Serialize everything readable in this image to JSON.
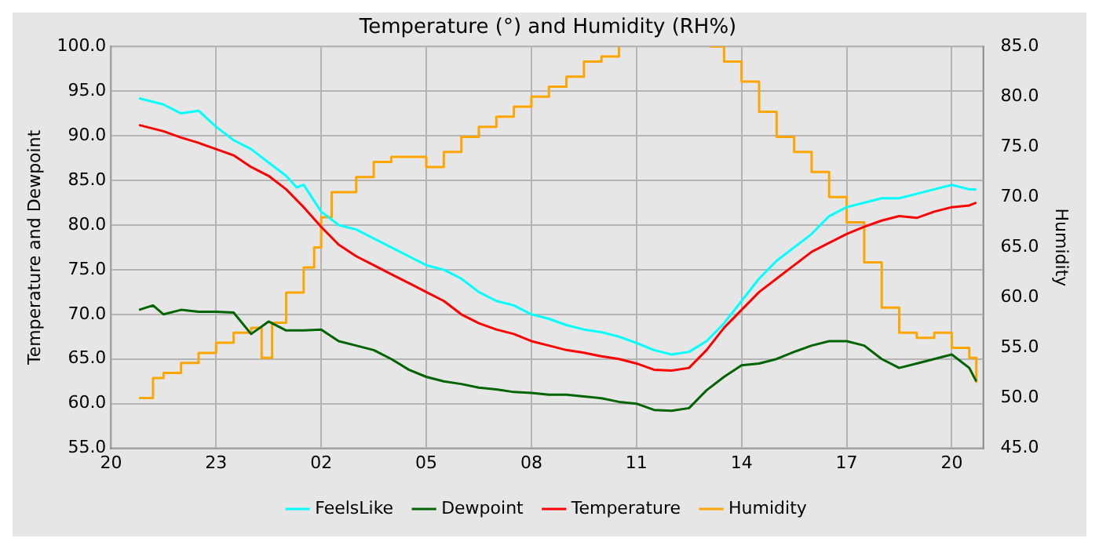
{
  "chart_data": {
    "type": "line",
    "title": "Temperature (°) and Humidity (RH%)",
    "ylabel": "Temperature and Dewpoint",
    "y2label": "Humidity",
    "xlim": [
      "--01-01T20:00",
      "--01-02T20:54"
    ],
    "xticks": [
      {
        "value": "--01-01T20:00",
        "label": "20"
      },
      {
        "value": "--01-01T23:00",
        "label": "23"
      },
      {
        "value": "--01-02T02:00",
        "label": "02"
      },
      {
        "value": "--01-02T05:00",
        "label": "05"
      },
      {
        "value": "--01-02T08:00",
        "label": "08"
      },
      {
        "value": "--01-02T11:00",
        "label": "11"
      },
      {
        "value": "--01-02T14:00",
        "label": "14"
      },
      {
        "value": "--01-02T17:00",
        "label": "17"
      },
      {
        "value": "--01-02T20:00",
        "label": "20"
      }
    ],
    "ylim": [
      55,
      100
    ],
    "yticks": [
      {
        "value": 55,
        "label": "55.0"
      },
      {
        "value": 60,
        "label": "60.0"
      },
      {
        "value": 65,
        "label": "65.0"
      },
      {
        "value": 70,
        "label": "70.0"
      },
      {
        "value": 75,
        "label": "75.0"
      },
      {
        "value": 80,
        "label": "80.0"
      },
      {
        "value": 85,
        "label": "85.0"
      },
      {
        "value": 90,
        "label": "90.0"
      },
      {
        "value": 95,
        "label": "95.0"
      },
      {
        "value": 100,
        "label": "100.0"
      }
    ],
    "y2lim": [
      45,
      85
    ],
    "y2ticks": [
      {
        "value": 45,
        "label": "45.0"
      },
      {
        "value": 50,
        "label": "50.0"
      },
      {
        "value": 55,
        "label": "55.0"
      },
      {
        "value": 60,
        "label": "60.0"
      },
      {
        "value": 65,
        "label": "65.0"
      },
      {
        "value": 70,
        "label": "70.0"
      },
      {
        "value": 75,
        "label": "75.0"
      },
      {
        "value": 80,
        "label": "80.0"
      },
      {
        "value": 85,
        "label": "85.0"
      }
    ],
    "grid": true,
    "legend": "bottom",
    "line_style": "solid",
    "series": [
      {
        "name": "FeelsLike",
        "color": "#00ffff",
        "x": [
          "--01-01T20:48",
          "--01-01T21:30",
          "--01-01T22:00",
          "--01-01T22:30",
          "--01-01T23:00",
          "--01-01T23:30",
          "--01-02T00:00",
          "--01-02T00:30",
          "--01-02T01:00",
          "--01-02T01:18",
          "--01-02T01:30",
          "--01-02T02:00",
          "--01-02T02:30",
          "--01-02T03:00",
          "--01-02T03:30",
          "--01-02T04:00",
          "--01-02T04:30",
          "--01-02T05:00",
          "--01-02T05:30",
          "--01-02T06:00",
          "--01-02T06:30",
          "--01-02T07:00",
          "--01-02T07:30",
          "--01-02T08:00",
          "--01-02T08:30",
          "--01-02T09:00",
          "--01-02T09:30",
          "--01-02T10:00",
          "--01-02T10:30",
          "--01-02T11:00",
          "--01-02T11:30",
          "--01-02T12:00",
          "--01-02T12:30",
          "--01-02T13:00",
          "--01-02T13:30",
          "--01-02T14:00",
          "--01-02T14:30",
          "--01-02T15:00",
          "--01-02T15:30",
          "--01-02T16:00",
          "--01-02T16:30",
          "--01-02T17:00",
          "--01-02T17:30",
          "--01-02T18:00",
          "--01-02T18:30",
          "--01-02T19:00",
          "--01-02T19:30",
          "--01-02T20:00",
          "--01-02T20:30",
          "--01-02T20:42"
        ],
        "values": [
          94.2,
          93.5,
          92.5,
          92.8,
          91,
          89.5,
          88.5,
          87,
          85.5,
          84.2,
          84.5,
          81.5,
          80,
          79.5,
          78.5,
          77.5,
          76.5,
          75.5,
          75,
          74,
          72.5,
          71.5,
          71,
          70,
          69.5,
          68.8,
          68.3,
          68,
          67.5,
          66.8,
          66,
          65.5,
          65.8,
          67,
          69,
          71.5,
          74,
          76,
          77.5,
          79,
          81,
          82,
          82.5,
          83,
          83,
          83.5,
          84,
          84.5,
          84,
          84
        ]
      },
      {
        "name": "Dewpoint",
        "color": "#006400",
        "x": [
          "--01-01T20:48",
          "--01-01T21:12",
          "--01-01T21:30",
          "--01-01T22:00",
          "--01-01T22:30",
          "--01-01T23:00",
          "--01-01T23:30",
          "--01-02T00:00",
          "--01-02T00:30",
          "--01-02T01:00",
          "--01-02T01:30",
          "--01-02T02:00",
          "--01-02T02:30",
          "--01-02T03:00",
          "--01-02T03:30",
          "--01-02T04:00",
          "--01-02T04:30",
          "--01-02T05:00",
          "--01-02T05:30",
          "--01-02T06:00",
          "--01-02T06:30",
          "--01-02T07:00",
          "--01-02T07:30",
          "--01-02T08:00",
          "--01-02T08:30",
          "--01-02T09:00",
          "--01-02T09:30",
          "--01-02T10:00",
          "--01-02T10:30",
          "--01-02T11:00",
          "--01-02T11:30",
          "--01-02T12:00",
          "--01-02T12:30",
          "--01-02T13:00",
          "--01-02T13:30",
          "--01-02T14:00",
          "--01-02T14:30",
          "--01-02T15:00",
          "--01-02T15:30",
          "--01-02T16:00",
          "--01-02T16:30",
          "--01-02T17:00",
          "--01-02T17:30",
          "--01-02T18:00",
          "--01-02T18:30",
          "--01-02T19:00",
          "--01-02T19:30",
          "--01-02T20:00",
          "--01-02T20:30",
          "--01-02T20:42"
        ],
        "values": [
          70.5,
          71,
          70,
          70.5,
          70.3,
          70.3,
          70.2,
          67.8,
          69.2,
          68.2,
          68.2,
          68.3,
          67,
          66.5,
          66,
          65,
          63.8,
          63,
          62.5,
          62.2,
          61.8,
          61.6,
          61.3,
          61.2,
          61,
          61,
          60.8,
          60.6,
          60.2,
          60,
          59.3,
          59.2,
          59.5,
          61.5,
          63,
          64.3,
          64.5,
          65,
          65.8,
          66.5,
          67,
          67,
          66.5,
          65,
          64,
          64.5,
          65,
          65.5,
          64,
          62.5
        ]
      },
      {
        "name": "Temperature",
        "color": "#ff0000",
        "x": [
          "--01-01T20:48",
          "--01-01T21:30",
          "--01-01T22:00",
          "--01-01T22:30",
          "--01-01T23:00",
          "--01-01T23:30",
          "--01-02T00:00",
          "--01-02T00:30",
          "--01-02T01:00",
          "--01-02T01:30",
          "--01-02T02:00",
          "--01-02T02:30",
          "--01-02T03:00",
          "--01-02T03:30",
          "--01-02T04:00",
          "--01-02T04:30",
          "--01-02T05:00",
          "--01-02T05:30",
          "--01-02T06:00",
          "--01-02T06:30",
          "--01-02T07:00",
          "--01-02T07:30",
          "--01-02T08:00",
          "--01-02T08:30",
          "--01-02T09:00",
          "--01-02T09:30",
          "--01-02T10:00",
          "--01-02T10:30",
          "--01-02T11:00",
          "--01-02T11:30",
          "--01-02T12:00",
          "--01-02T12:30",
          "--01-02T13:00",
          "--01-02T13:30",
          "--01-02T14:00",
          "--01-02T14:30",
          "--01-02T15:00",
          "--01-02T15:30",
          "--01-02T16:00",
          "--01-02T16:30",
          "--01-02T17:00",
          "--01-02T17:30",
          "--01-02T18:00",
          "--01-02T18:30",
          "--01-02T19:00",
          "--01-02T19:30",
          "--01-02T20:00",
          "--01-02T20:30",
          "--01-02T20:42"
        ],
        "values": [
          91.2,
          90.5,
          89.8,
          89.2,
          88.5,
          87.8,
          86.5,
          85.5,
          84,
          82,
          79.8,
          77.8,
          76.5,
          75.5,
          74.5,
          73.5,
          72.5,
          71.5,
          70,
          69,
          68.3,
          67.8,
          67,
          66.5,
          66,
          65.7,
          65.3,
          65,
          64.5,
          63.8,
          63.7,
          64,
          66,
          68.5,
          70.5,
          72.5,
          74,
          75.5,
          77,
          78,
          79,
          79.8,
          80.5,
          81,
          80.8,
          81.5,
          82,
          82.2,
          82.5
        ]
      },
      {
        "name": "Humidity",
        "color": "#ffa500",
        "type": "step",
        "axis": "y2",
        "x": [
          "--01-01T20:48",
          "--01-01T21:12",
          "--01-01T21:30",
          "--01-01T22:00",
          "--01-01T22:30",
          "--01-01T23:00",
          "--01-01T23:30",
          "--01-02T00:00",
          "--01-02T00:18",
          "--01-02T00:36",
          "--01-02T01:00",
          "--01-02T01:30",
          "--01-02T01:48",
          "--01-02T02:00",
          "--01-02T02:18",
          "--01-02T03:00",
          "--01-02T03:30",
          "--01-02T04:00",
          "--01-02T04:30",
          "--01-02T05:00",
          "--01-02T05:30",
          "--01-02T06:00",
          "--01-02T06:30",
          "--01-02T07:00",
          "--01-02T07:30",
          "--01-02T08:00",
          "--01-02T08:30",
          "--01-02T09:00",
          "--01-02T09:30",
          "--01-02T10:00",
          "--01-02T10:30",
          "--01-02T11:00",
          "--01-02T13:06",
          "--01-02T13:30",
          "--01-02T14:00",
          "--01-02T14:30",
          "--01-02T15:00",
          "--01-02T15:30",
          "--01-02T16:00",
          "--01-02T16:30",
          "--01-02T17:00",
          "--01-02T17:30",
          "--01-02T18:00",
          "--01-02T18:30",
          "--01-02T19:00",
          "--01-02T19:30",
          "--01-02T20:00",
          "--01-02T20:30",
          "--01-02T20:42"
        ],
        "values": [
          50,
          52,
          52.5,
          53.5,
          54.5,
          55.5,
          56.5,
          57,
          54,
          57.5,
          60.5,
          63,
          65,
          68,
          70.5,
          72,
          73.5,
          74,
          74,
          73,
          74.5,
          76,
          77,
          78,
          79,
          80,
          81,
          82,
          83.5,
          84,
          85,
          null,
          85,
          83.5,
          81.5,
          78.5,
          76,
          74.5,
          72.5,
          70,
          67.5,
          63.5,
          59,
          56.5,
          56,
          56.5,
          55,
          54,
          51.5
        ]
      }
    ]
  }
}
